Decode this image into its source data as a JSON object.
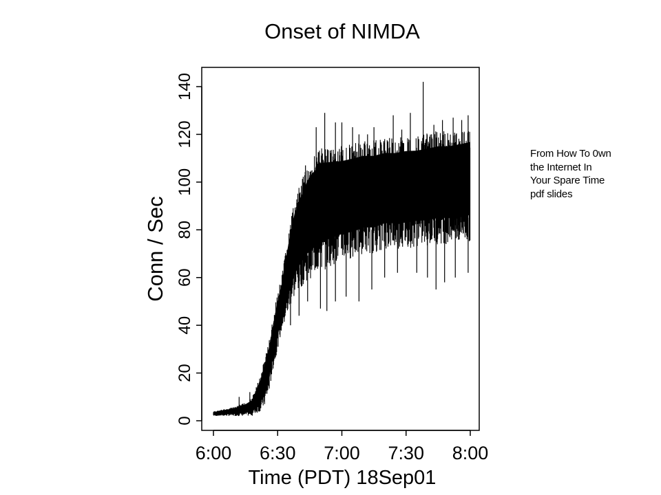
{
  "note": {
    "lines": [
      "From How To 0wn",
      "the Internet In",
      "Your Spare Time",
      "pdf slides"
    ]
  },
  "chart_data": {
    "type": "line",
    "title": "Onset of NIMDA",
    "xlabel": "Time (PDT) 18Sep01",
    "ylabel": "Conn / Sec",
    "x_ticks": [
      "6:00",
      "6:30",
      "7:00",
      "7:30",
      "8:00"
    ],
    "x_tick_minutes": [
      0,
      30,
      60,
      90,
      120
    ],
    "y_ticks": [
      0,
      20,
      40,
      60,
      80,
      100,
      120,
      140
    ],
    "xlim_minutes": [
      0,
      120
    ],
    "ylim": [
      0,
      140
    ],
    "grid": false,
    "series": [
      {
        "x_minutes": [
          0,
          5,
          10,
          15,
          18,
          20,
          22,
          24,
          26,
          28,
          30,
          32,
          34,
          36,
          38,
          40,
          42,
          44,
          46,
          48,
          50,
          55,
          60,
          65,
          70,
          75,
          80,
          85,
          90,
          95,
          100,
          105,
          110,
          115,
          120
        ],
        "upper": [
          4,
          5,
          6,
          8,
          10,
          15,
          20,
          28,
          35,
          45,
          55,
          62,
          75,
          85,
          95,
          100,
          105,
          110,
          113,
          115,
          118,
          118,
          118,
          119,
          120,
          120,
          121,
          121,
          122,
          122,
          123,
          124,
          124,
          125,
          126
        ],
        "lower": [
          2,
          2,
          2,
          2,
          2,
          3,
          4,
          6,
          12,
          22,
          30,
          38,
          42,
          48,
          52,
          55,
          57,
          59,
          60,
          62,
          62,
          65,
          67,
          68,
          70,
          70,
          72,
          72,
          72,
          73,
          73,
          74,
          74,
          74,
          75
        ],
        "spikes": [
          [
            12,
            10
          ],
          [
            17,
            12
          ],
          [
            35,
            72
          ],
          [
            40,
            93
          ],
          [
            43,
            107
          ],
          [
            48,
            123
          ],
          [
            52,
            129
          ],
          [
            57,
            125
          ],
          [
            60,
            125
          ],
          [
            65,
            123
          ],
          [
            68,
            120
          ],
          [
            72,
            120
          ],
          [
            75,
            123
          ],
          [
            80,
            118
          ],
          [
            84,
            128
          ],
          [
            88,
            122
          ],
          [
            92,
            129
          ],
          [
            98,
            142
          ],
          [
            103,
            124
          ],
          [
            107,
            126
          ],
          [
            112,
            127
          ],
          [
            116,
            126
          ],
          [
            119,
            128
          ]
        ],
        "dips": [
          [
            36,
            40
          ],
          [
            40,
            44
          ],
          [
            44,
            50
          ],
          [
            50,
            47
          ],
          [
            53,
            46
          ],
          [
            57,
            50
          ],
          [
            62,
            52
          ],
          [
            68,
            50
          ],
          [
            74,
            55
          ],
          [
            80,
            60
          ],
          [
            86,
            62
          ],
          [
            95,
            62
          ],
          [
            100,
            60
          ],
          [
            104,
            55
          ],
          [
            108,
            58
          ],
          [
            113,
            60
          ],
          [
            119,
            62
          ]
        ]
      }
    ]
  }
}
